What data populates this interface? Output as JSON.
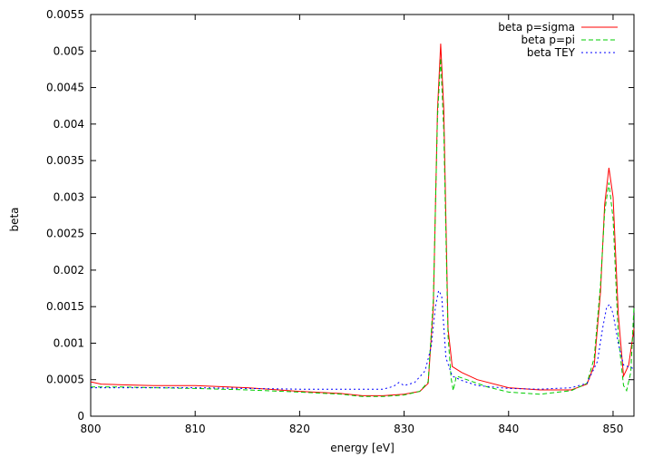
{
  "chart_data": {
    "type": "line",
    "xlabel": "energy [eV]",
    "ylabel": "beta",
    "xlim": [
      800,
      852
    ],
    "ylim": [
      0,
      0.0055
    ],
    "xticks": [
      800,
      810,
      820,
      830,
      840,
      850
    ],
    "yticks": [
      "0",
      "0.0005",
      "0.001",
      "0.0015",
      "0.002",
      "0.0025",
      "0.003",
      "0.0035",
      "0.004",
      "0.0045",
      "0.005",
      "0.0055"
    ],
    "grid": false,
    "legend_position": "top-right",
    "series": [
      {
        "name": "beta p=sigma",
        "color": "#ff0000",
        "dash": "",
        "x": [
          800,
          801,
          803,
          806,
          810,
          815,
          820,
          824,
          826,
          828,
          830,
          831.5,
          832.3,
          832.8,
          833.2,
          833.5,
          833.8,
          834.2,
          834.6,
          835.5,
          837,
          840,
          843,
          846,
          847.5,
          848.2,
          848.8,
          849.2,
          849.6,
          850,
          850.5,
          851,
          851.5,
          852
        ],
        "y": [
          0.00047,
          0.00044,
          0.00043,
          0.00042,
          0.00042,
          0.00039,
          0.00034,
          0.00031,
          0.00028,
          0.00028,
          0.0003,
          0.00034,
          0.00045,
          0.0015,
          0.0042,
          0.0051,
          0.0042,
          0.0012,
          0.00068,
          0.0006,
          0.0005,
          0.00039,
          0.00036,
          0.00036,
          0.00044,
          0.0007,
          0.0017,
          0.0029,
          0.0034,
          0.003,
          0.0014,
          0.00055,
          0.0007,
          0.0012
        ]
      },
      {
        "name": "beta p=pi",
        "color": "#00cc00",
        "dash": "5,3",
        "x": [
          800,
          801,
          803,
          806,
          810,
          815,
          820,
          824,
          826,
          828,
          830,
          831.5,
          832.3,
          832.8,
          833.2,
          833.5,
          833.8,
          834.2,
          834.5,
          834.7,
          835,
          836,
          838,
          840,
          843,
          846,
          847.5,
          848.2,
          848.8,
          849.2,
          849.6,
          850,
          850.5,
          851,
          851.3,
          851.7,
          852
        ],
        "y": [
          0.0004,
          0.0004,
          0.0004,
          0.00039,
          0.00038,
          0.00036,
          0.00033,
          0.0003,
          0.00027,
          0.00027,
          0.00029,
          0.00034,
          0.00047,
          0.0016,
          0.0041,
          0.0049,
          0.0039,
          0.0011,
          0.00052,
          0.00035,
          0.00055,
          0.0005,
          0.0004,
          0.00033,
          0.0003,
          0.00035,
          0.00045,
          0.0008,
          0.0018,
          0.0028,
          0.0032,
          0.0027,
          0.0011,
          0.00042,
          0.00035,
          0.0006,
          0.0015
        ]
      },
      {
        "name": "beta TEY",
        "color": "#0000ff",
        "dash": "2,3",
        "x": [
          800,
          803,
          806,
          810,
          815,
          820,
          824,
          826,
          828,
          829,
          829.5,
          830,
          831,
          832,
          832.6,
          833,
          833.3,
          833.6,
          834,
          834.6,
          835.5,
          837,
          840,
          843,
          846,
          847.5,
          848.5,
          849,
          849.4,
          849.7,
          850,
          850.5,
          851,
          852
        ],
        "y": [
          0.00039,
          0.00039,
          0.00039,
          0.00039,
          0.00038,
          0.00037,
          0.00037,
          0.00037,
          0.00037,
          0.00041,
          0.00046,
          0.00042,
          0.00046,
          0.00062,
          0.00095,
          0.0015,
          0.00172,
          0.00165,
          0.0008,
          0.00055,
          0.00049,
          0.00042,
          0.00038,
          0.00037,
          0.00039,
          0.00045,
          0.00075,
          0.0012,
          0.0015,
          0.00153,
          0.0014,
          0.001,
          0.0007,
          0.00065
        ]
      }
    ]
  }
}
